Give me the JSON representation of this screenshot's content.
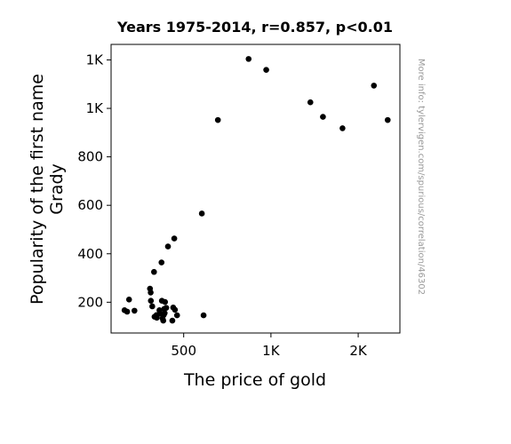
{
  "chart_data": {
    "type": "scatter",
    "title": "Years 1975-2014, r=0.857, p<0.01",
    "xlabel": "The price of gold",
    "ylabel": [
      "Popularity of the first name",
      "Grady"
    ],
    "source_text": "More info: tylervigen.com/spurious/correlation/46302",
    "x_ticks": [
      {
        "value": 500,
        "label": "500"
      },
      {
        "value": 1000,
        "label": "1K"
      },
      {
        "value": 1500,
        "label": "2K"
      }
    ],
    "y_ticks": [
      {
        "value": 200,
        "label": "200"
      },
      {
        "value": 400,
        "label": "400"
      },
      {
        "value": 600,
        "label": "600"
      },
      {
        "value": 800,
        "label": "800"
      },
      {
        "value": 1000,
        "label": "1K"
      },
      {
        "value": 1200,
        "label": "1K"
      }
    ],
    "xlim": [
      84,
      1739
    ],
    "ylim": [
      73,
      1264
    ],
    "grid": false,
    "marker_color": "#000000",
    "points": [
      {
        "x": 161,
        "y": 167
      },
      {
        "x": 176,
        "y": 161
      },
      {
        "x": 187,
        "y": 211
      },
      {
        "x": 218,
        "y": 165
      },
      {
        "x": 307,
        "y": 256
      },
      {
        "x": 311,
        "y": 240
      },
      {
        "x": 312,
        "y": 206
      },
      {
        "x": 320,
        "y": 183
      },
      {
        "x": 330,
        "y": 325
      },
      {
        "x": 333,
        "y": 140
      },
      {
        "x": 344,
        "y": 147
      },
      {
        "x": 346,
        "y": 136
      },
      {
        "x": 361,
        "y": 167
      },
      {
        "x": 363,
        "y": 153
      },
      {
        "x": 373,
        "y": 364
      },
      {
        "x": 375,
        "y": 206
      },
      {
        "x": 379,
        "y": 133
      },
      {
        "x": 383,
        "y": 124
      },
      {
        "x": 386,
        "y": 148
      },
      {
        "x": 388,
        "y": 172
      },
      {
        "x": 391,
        "y": 155
      },
      {
        "x": 393,
        "y": 201
      },
      {
        "x": 400,
        "y": 177
      },
      {
        "x": 410,
        "y": 430
      },
      {
        "x": 435,
        "y": 124
      },
      {
        "x": 440,
        "y": 178
      },
      {
        "x": 446,
        "y": 463
      },
      {
        "x": 450,
        "y": 169
      },
      {
        "x": 462,
        "y": 146
      },
      {
        "x": 604,
        "y": 566
      },
      {
        "x": 614,
        "y": 146
      },
      {
        "x": 696,
        "y": 952
      },
      {
        "x": 872,
        "y": 1204
      },
      {
        "x": 973,
        "y": 1159
      },
      {
        "x": 1226,
        "y": 1025
      },
      {
        "x": 1298,
        "y": 965
      },
      {
        "x": 1410,
        "y": 918
      },
      {
        "x": 1590,
        "y": 1094
      },
      {
        "x": 1669,
        "y": 952
      }
    ]
  }
}
